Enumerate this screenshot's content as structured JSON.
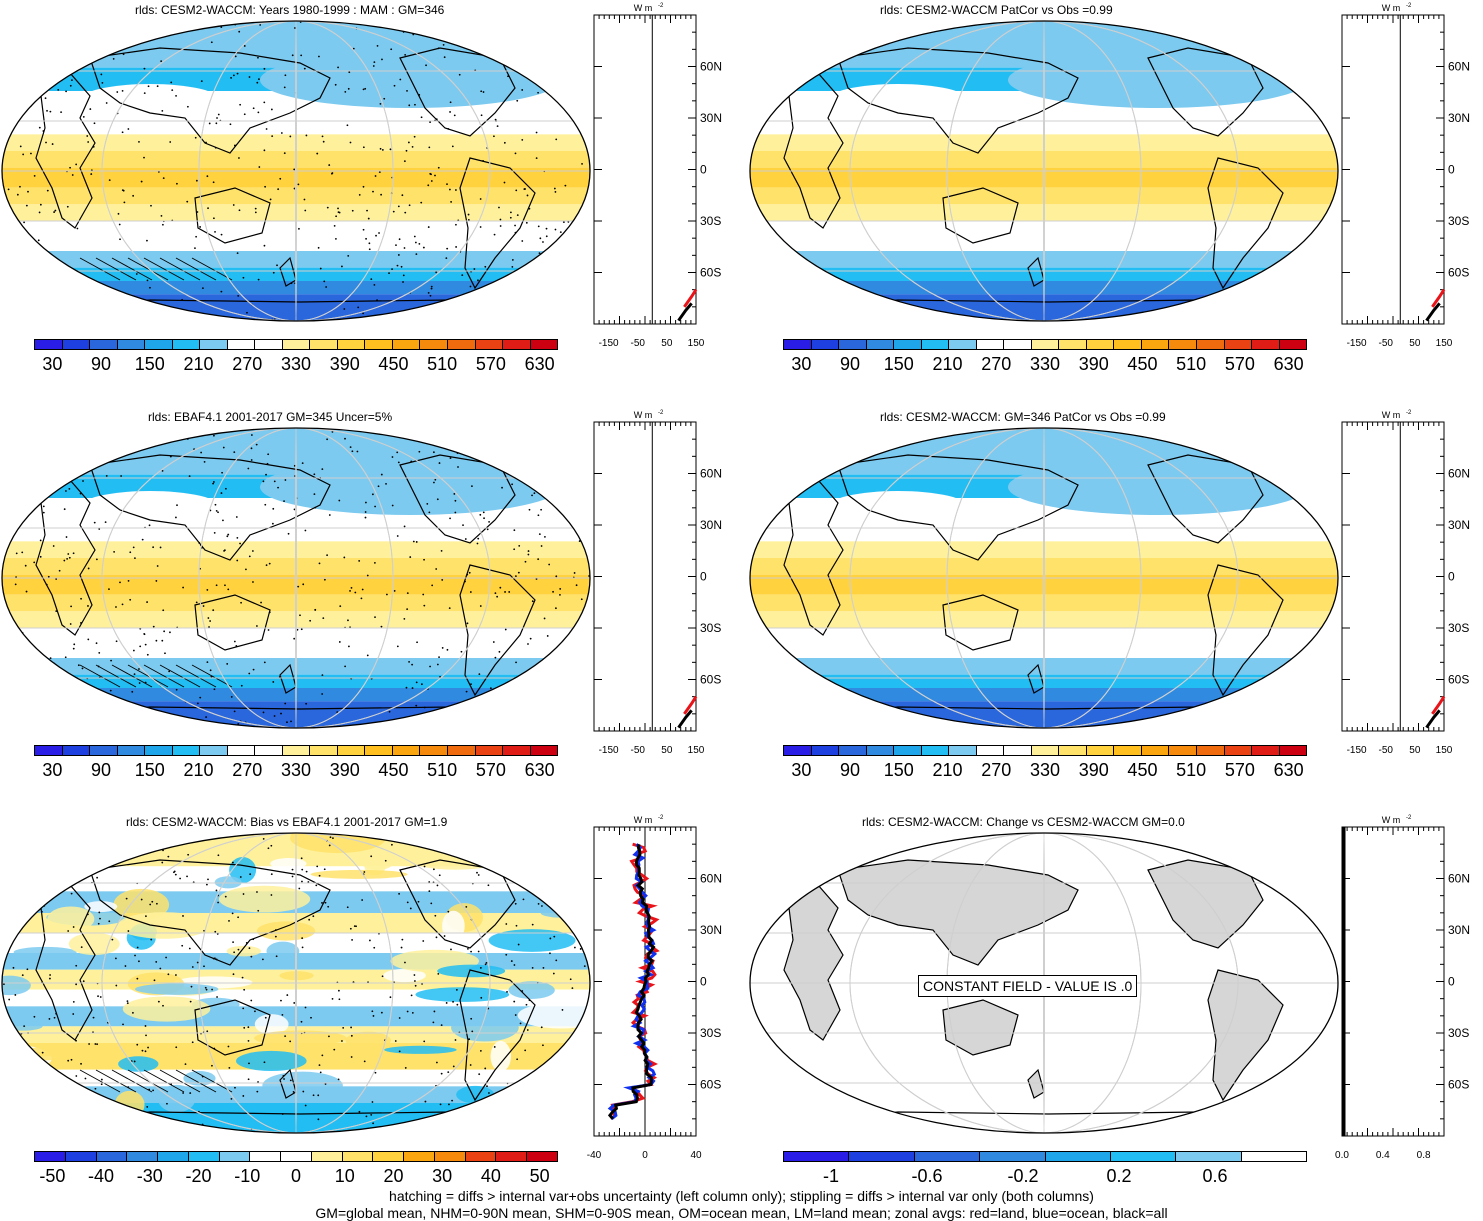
{
  "chart_data": [
    {
      "type": "heatmap",
      "title": "rlds: CESM2-WACCM: Years 1980-1999 : MAM : GM=346",
      "colorbar": {
        "ticks": [
          "30",
          "90",
          "150",
          "210",
          "270",
          "330",
          "390",
          "450",
          "510",
          "570",
          "630"
        ]
      },
      "profile": {
        "units": "W m-2",
        "xticks": [
          "-150",
          "-50",
          "50",
          "150"
        ],
        "yticks": [
          "60N",
          "30N",
          "0",
          "30S",
          "60S"
        ]
      },
      "stippling": true,
      "hatching": true
    },
    {
      "type": "heatmap",
      "title": "rlds: CESM2-WACCM PatCor vs Obs =0.99",
      "colorbar": {
        "ticks": [
          "30",
          "90",
          "150",
          "210",
          "270",
          "330",
          "390",
          "450",
          "510",
          "570",
          "630"
        ]
      },
      "profile": {
        "units": "W m-2",
        "xticks": [
          "-150",
          "-50",
          "50",
          "150"
        ],
        "yticks": [
          "60N",
          "30N",
          "0",
          "30S",
          "60S"
        ]
      }
    },
    {
      "type": "heatmap",
      "title": "rlds: EBAF4.1 2001-2017 GM=345 Uncer=5%",
      "colorbar": {
        "ticks": [
          "30",
          "90",
          "150",
          "210",
          "270",
          "330",
          "390",
          "450",
          "510",
          "570",
          "630"
        ]
      },
      "profile": {
        "units": "W m-2",
        "xticks": [
          "-150",
          "-50",
          "50",
          "150"
        ],
        "yticks": [
          "60N",
          "30N",
          "0",
          "30S",
          "60S"
        ]
      },
      "stippling": true,
      "hatching": true
    },
    {
      "type": "heatmap",
      "title": "rlds: CESM2-WACCM: GM=346 PatCor vs Obs =0.99",
      "colorbar": {
        "ticks": [
          "30",
          "90",
          "150",
          "210",
          "270",
          "330",
          "390",
          "450",
          "510",
          "570",
          "630"
        ]
      },
      "profile": {
        "units": "W m-2",
        "xticks": [
          "-150",
          "-50",
          "50",
          "150"
        ],
        "yticks": [
          "60N",
          "30N",
          "0",
          "30S",
          "60S"
        ]
      }
    },
    {
      "type": "heatmap",
      "title": "rlds: CESM2-WACCM: Bias vs EBAF4.1 2001-2017 GM=1.9",
      "colorbar": {
        "ticks": [
          "-50",
          "-40",
          "-30",
          "-20",
          "-10",
          "0",
          "10",
          "20",
          "30",
          "40",
          "50"
        ]
      },
      "profile": {
        "units": "W m-2",
        "xticks": [
          "-40",
          "0",
          "40"
        ],
        "yticks": [
          "60N",
          "30N",
          "0",
          "30S",
          "60S"
        ]
      },
      "stippling": true,
      "hatching": true
    },
    {
      "type": "heatmap",
      "title": "rlds: CESM2-WACCM: Change vs CESM2-WACCM GM=0.0",
      "colorbar": {
        "ticks": [
          "-1",
          "-0.6",
          "-0.2",
          "0.2",
          "0.6"
        ]
      },
      "profile": {
        "units": "W m-2",
        "xticks": [
          "0.0",
          "0.4",
          "0.8"
        ],
        "yticks": [
          "60N",
          "30N",
          "0",
          "30S",
          "60S"
        ]
      },
      "annotation": "CONSTANT FIELD - VALUE IS .0"
    }
  ],
  "colors": {
    "abs_scale": [
      "#2a1ee6",
      "#1e40e0",
      "#2a66dc",
      "#2f8ae0",
      "#1fa6ea",
      "#22bdf2",
      "#7ccaf0",
      "#ffffff",
      "#ffffff",
      "#fff19c",
      "#ffe26a",
      "#ffd23e",
      "#ffbf1e",
      "#fca60f",
      "#f58a0c",
      "#ef6b0d",
      "#ea4212",
      "#e01c16",
      "#cc0010"
    ],
    "diff_scale": [
      "#2a1ee6",
      "#1e40e0",
      "#2a66dc",
      "#2f8ae0",
      "#1fa6ea",
      "#22bdf2",
      "#7ccaf0",
      "#ffffff",
      "#ffffff",
      "#fff19c",
      "#ffe26a",
      "#ffd23e",
      "#fca60f",
      "#f58a0c",
      "#ea4212",
      "#e01c16",
      "#cc0010"
    ],
    "change_scale": [
      "#2a1ee6",
      "#1e40e0",
      "#2a66dc",
      "#2f8ae0",
      "#1fa6ea",
      "#22bdf2",
      "#7ccaf0",
      "#ffffff"
    ],
    "land_gray": "#d6d6d6",
    "zonal_land": "#e8141a",
    "zonal_ocean": "#1030f0",
    "zonal_all": "#000000"
  },
  "notes": {
    "line1": "hatching = diffs > internal var+obs uncertainty (left column only); stippling = diffs > internal var only (both columns)",
    "line2": "GM=global mean, NHM=0-90N mean, SHM=0-90S mean, OM=ocean mean, LM=land mean; zonal avgs: red=land, blue=ocean, black=all"
  }
}
